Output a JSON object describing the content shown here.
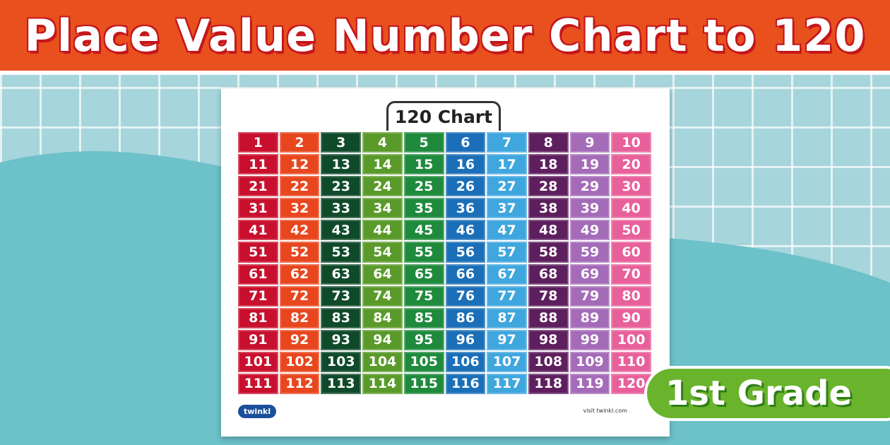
{
  "header": {
    "title": "Place Value Number Chart to 120"
  },
  "poster": {
    "title": "120 Chart",
    "logo": "twinkl",
    "footer": "visit twinkl.com"
  },
  "grid": {
    "column_colors": [
      "#c8102e",
      "#e8461e",
      "#0f4a2a",
      "#5a9a2a",
      "#1f8a3c",
      "#1b6fb8",
      "#3fa6de",
      "#5e1f5e",
      "#a46bb8",
      "#e8609a"
    ],
    "rows": [
      [
        1,
        2,
        3,
        4,
        5,
        6,
        7,
        8,
        9,
        10
      ],
      [
        11,
        12,
        13,
        14,
        15,
        16,
        17,
        18,
        19,
        20
      ],
      [
        21,
        22,
        23,
        24,
        25,
        26,
        27,
        28,
        29,
        30
      ],
      [
        31,
        32,
        33,
        34,
        35,
        36,
        37,
        38,
        39,
        40
      ],
      [
        41,
        42,
        43,
        44,
        45,
        46,
        47,
        48,
        49,
        50
      ],
      [
        51,
        52,
        53,
        54,
        55,
        56,
        57,
        58,
        59,
        60
      ],
      [
        61,
        62,
        63,
        64,
        65,
        66,
        67,
        68,
        69,
        70
      ],
      [
        71,
        72,
        73,
        74,
        75,
        76,
        77,
        78,
        79,
        80
      ],
      [
        81,
        82,
        83,
        84,
        85,
        86,
        87,
        88,
        89,
        90
      ],
      [
        91,
        92,
        93,
        94,
        95,
        96,
        97,
        98,
        99,
        100
      ],
      [
        101,
        102,
        103,
        104,
        105,
        106,
        107,
        108,
        109,
        110
      ],
      [
        111,
        112,
        113,
        114,
        115,
        116,
        117,
        118,
        119,
        120
      ]
    ]
  },
  "badge": {
    "text": "1st Grade"
  }
}
